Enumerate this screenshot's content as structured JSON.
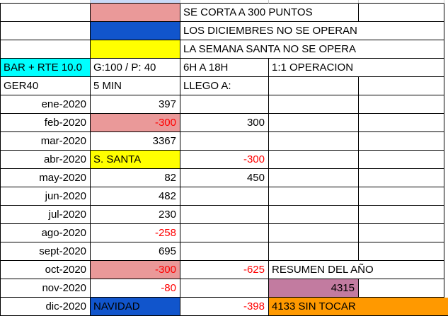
{
  "colors": {
    "pink_highlight": "#ea9999",
    "blue_highlight": "#1155cc",
    "yellow_highlight": "#ffff00",
    "cyan_highlight": "#00ffff",
    "purple_highlight": "#c27ba0",
    "orange_highlight": "#ff9900",
    "selection_blue": "#c9daf8",
    "negative_text": "#ff0000",
    "grid_border": "#000000",
    "partial_gridline": "#c8c8c8"
  },
  "partial_top_row": {
    "highlighted_col_index": 1
  },
  "grid": {
    "rows": [
      {
        "row": 1,
        "cells": [
          {
            "text": ""
          },
          {
            "text": "",
            "bg": "pink_highlight"
          },
          {
            "text": "SE CORTA A 300 PUNTOS",
            "span": 2
          },
          {
            "text": ""
          }
        ]
      },
      {
        "row": 2,
        "cells": [
          {
            "text": ""
          },
          {
            "text": "",
            "bg": "blue_highlight"
          },
          {
            "text": "LOS DICIEMBRES NO SE OPERAN",
            "span": 3
          }
        ]
      },
      {
        "row": 3,
        "cells": [
          {
            "text": ""
          },
          {
            "text": "",
            "bg": "yellow_highlight"
          },
          {
            "text": "LA SEMANA SANTA NO SE OPERA",
            "span": 3
          }
        ]
      },
      {
        "row": 4,
        "cells": [
          {
            "text": "BAR + RTE 10.0",
            "bg": "cyan_highlight"
          },
          {
            "text": "G:100 / P: 40"
          },
          {
            "text": "6H A 18H"
          },
          {
            "text": "1:1 OPERACION",
            "span": 2
          }
        ]
      },
      {
        "row": 5,
        "cells": [
          {
            "text": "GER40"
          },
          {
            "text": "5 MIN"
          },
          {
            "text": "LLEGO A:"
          },
          {
            "text": ""
          },
          {
            "text": ""
          }
        ]
      },
      {
        "row": 6,
        "cells": [
          {
            "text": "ene-2020",
            "align": "right"
          },
          {
            "text": "397",
            "align": "right"
          },
          {
            "text": ""
          },
          {
            "text": ""
          },
          {
            "text": ""
          }
        ]
      },
      {
        "row": 7,
        "cells": [
          {
            "text": "feb-2020",
            "align": "right"
          },
          {
            "text": "-300",
            "align": "right",
            "bg": "pink_highlight",
            "negative": true
          },
          {
            "text": "300",
            "align": "right"
          },
          {
            "text": ""
          },
          {
            "text": ""
          }
        ]
      },
      {
        "row": 8,
        "cells": [
          {
            "text": "mar-2020",
            "align": "right"
          },
          {
            "text": "3367",
            "align": "right"
          },
          {
            "text": ""
          },
          {
            "text": ""
          },
          {
            "text": ""
          }
        ]
      },
      {
        "row": 9,
        "cells": [
          {
            "text": "abr-2020",
            "align": "right"
          },
          {
            "text": "S. SANTA",
            "bg": "yellow_highlight"
          },
          {
            "text": "-300",
            "align": "right",
            "negative": true
          },
          {
            "text": ""
          },
          {
            "text": ""
          }
        ]
      },
      {
        "row": 10,
        "cells": [
          {
            "text": "may-2020",
            "align": "right"
          },
          {
            "text": "82",
            "align": "right"
          },
          {
            "text": "450",
            "align": "right"
          },
          {
            "text": ""
          },
          {
            "text": ""
          }
        ]
      },
      {
        "row": 11,
        "cells": [
          {
            "text": "jun-2020",
            "align": "right"
          },
          {
            "text": "482",
            "align": "right"
          },
          {
            "text": ""
          },
          {
            "text": ""
          },
          {
            "text": ""
          }
        ]
      },
      {
        "row": 12,
        "cells": [
          {
            "text": "jul-2020",
            "align": "right"
          },
          {
            "text": "230",
            "align": "right"
          },
          {
            "text": ""
          },
          {
            "text": ""
          },
          {
            "text": ""
          }
        ]
      },
      {
        "row": 13,
        "cells": [
          {
            "text": "ago-2020",
            "align": "right"
          },
          {
            "text": "-258",
            "align": "right",
            "negative": true
          },
          {
            "text": ""
          },
          {
            "text": ""
          },
          {
            "text": ""
          }
        ]
      },
      {
        "row": 14,
        "cells": [
          {
            "text": "sept-2020",
            "align": "right"
          },
          {
            "text": "695",
            "align": "right"
          },
          {
            "text": ""
          },
          {
            "text": ""
          },
          {
            "text": ""
          }
        ]
      },
      {
        "row": 15,
        "cells": [
          {
            "text": "oct-2020",
            "align": "right"
          },
          {
            "text": "-300",
            "align": "right",
            "bg": "pink_highlight",
            "negative": true
          },
          {
            "text": "-625",
            "align": "right",
            "negative": true
          },
          {
            "text": "RESUMEN DEL AÑO",
            "span": 2
          }
        ]
      },
      {
        "row": 16,
        "cells": [
          {
            "text": "nov-2020",
            "align": "right"
          },
          {
            "text": "-80",
            "align": "right",
            "negative": true
          },
          {
            "text": ""
          },
          {
            "text": "4315",
            "align": "right",
            "bg": "purple_highlight"
          },
          {
            "text": ""
          }
        ]
      },
      {
        "row": 17,
        "cells": [
          {
            "text": "dic-2020",
            "align": "right"
          },
          {
            "text": "NAVIDAD",
            "bg": "blue_highlight"
          },
          {
            "text": "-398",
            "align": "right",
            "negative": true
          },
          {
            "text": "4133 SIN TOCAR",
            "span": 3,
            "bg": "orange_highlight",
            "no_right_border": true
          }
        ]
      }
    ]
  }
}
